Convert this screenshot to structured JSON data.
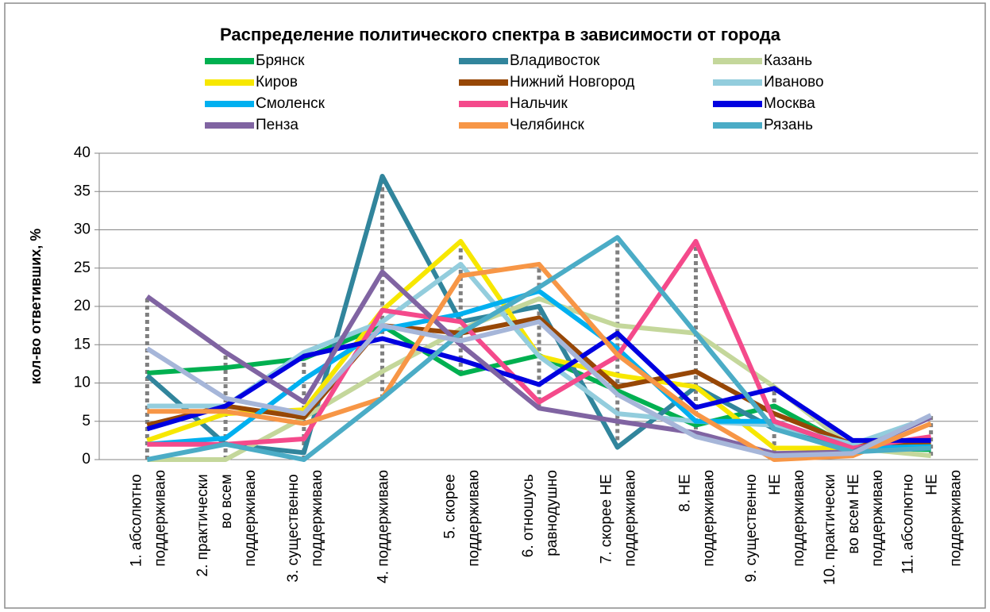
{
  "chart_data": {
    "type": "line",
    "title": "Распределение политического спектра в зависимости от города",
    "y_label": "кол-во ответивших, %",
    "categories": [
      "1. абсолютно поддерживаю",
      "2. практически во всем поддерживаю",
      "3. существенно поддерживаю",
      "4. поддерживаю",
      "5. скорее поддерживаю",
      "6. отношусь равнодушно",
      "7. скорее НЕ поддерживаю",
      "8. НЕ поддерживаю",
      "9. существенно НЕ поддерживаю",
      "10. практически во всем НЕ поддерживаю",
      "11. абсолютно НЕ поддерживаю"
    ],
    "ylim": [
      0,
      40
    ],
    "yticks": [
      0,
      5,
      10,
      15,
      20,
      25,
      30,
      35,
      40
    ],
    "grid": true,
    "hilo_lines": true,
    "series": [
      {
        "name": "Брянск",
        "color": "#00b050",
        "values": [
          11.3,
          12,
          13.2,
          17.5,
          11.2,
          13.6,
          9,
          4.5,
          7,
          1.5,
          1.3
        ]
      },
      {
        "name": "Владивосток",
        "color": "#31859c",
        "values": [
          11,
          2,
          0.9,
          37,
          18,
          20,
          1.6,
          9.5,
          4,
          1.5,
          1.5
        ]
      },
      {
        "name": "Казань",
        "color": "#c4d79b",
        "values": [
          0,
          0,
          5.5,
          11.5,
          17,
          21,
          17.5,
          16.5,
          9.5,
          1.5,
          0.5
        ]
      },
      {
        "name": "Киров",
        "color": "#f7e700",
        "values": [
          2.5,
          6,
          6.5,
          19.5,
          28.5,
          13.5,
          11,
          9.5,
          1.5,
          1.5,
          2
        ]
      },
      {
        "name": "Нижний Новгород",
        "color": "#974706",
        "values": [
          4.5,
          7,
          5.5,
          17.5,
          16.5,
          18.5,
          9.5,
          11.5,
          6,
          2,
          2
        ]
      },
      {
        "name": "Иваново",
        "color": "#93cddd",
        "values": [
          7,
          7,
          14,
          18,
          25.5,
          13.5,
          6,
          5,
          4.5,
          2,
          5.5
        ]
      },
      {
        "name": "Смоленск",
        "color": "#00b0f0",
        "values": [
          2,
          2.8,
          10.5,
          17,
          19,
          22,
          14.5,
          5,
          5,
          1.5,
          1.7
        ]
      },
      {
        "name": "Нальчик",
        "color": "#f44a8b",
        "values": [
          2,
          2,
          2.7,
          19.5,
          18,
          7.5,
          13.5,
          28.5,
          5,
          1.5,
          3
        ]
      },
      {
        "name": "Москва",
        "color": "#0000e0",
        "values": [
          4,
          7,
          13.5,
          15.8,
          13,
          9.8,
          16.5,
          6.8,
          9.3,
          2.5,
          2.5
        ]
      },
      {
        "name": "Пенза",
        "color": "#8064a2",
        "values": [
          21.3,
          14,
          7.5,
          24.5,
          15,
          6.7,
          5,
          3.5,
          0.8,
          1,
          5.5
        ]
      },
      {
        "name": "Челябинск",
        "color": "#f79646",
        "values": [
          6.3,
          6.3,
          4.7,
          8,
          24,
          25.5,
          13.7,
          6,
          0,
          0.5,
          4.7
        ]
      },
      {
        "name": "Рязань",
        "color": "#4bacc6",
        "values": [
          0,
          2,
          0,
          8,
          16.5,
          22.5,
          29,
          16.5,
          4,
          1,
          1.5
        ]
      },
      {
        "color": "#a6b6d9",
        "values": [
          14.5,
          8,
          6,
          17.5,
          15.5,
          18,
          8.5,
          3,
          0.5,
          0.8,
          5.8
        ]
      }
    ]
  }
}
